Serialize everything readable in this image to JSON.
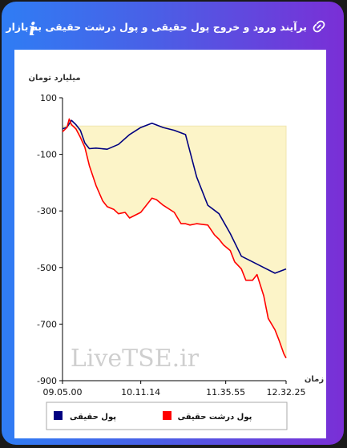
{
  "header": {
    "title": "برآیند ورود و خروج پول حقیقی و پول درشت حقیقی به بازار",
    "info_label": "i",
    "link_icon": "link-icon"
  },
  "watermark": "LiveTSE.ir",
  "colors": {
    "real_money": "#000080",
    "big_real_money": "#ff0000",
    "fill": "#fcf4c8",
    "fill_edge": "#f0e6b0"
  },
  "chart_data": {
    "type": "area",
    "ylabel": "میلیارد تومان",
    "xlabel": "زمان",
    "ylim": [
      -900,
      100
    ],
    "y_ticks": [
      100,
      -100,
      -300,
      -500,
      -700,
      -900
    ],
    "x_ticks": [
      "09.05.00",
      "10.11.14",
      "11.35.55",
      "12.32.25"
    ],
    "grid": false,
    "legend_position": "bottom",
    "legend": [
      "پول حقیقی",
      "پول درشت حقیقی"
    ],
    "series": [
      {
        "name": "پول حقیقی",
        "x": [
          0,
          2,
          4,
          6,
          8,
          10,
          12,
          15,
          20,
          25,
          30,
          35,
          40,
          45,
          50,
          55,
          60,
          65,
          70,
          75,
          80,
          85,
          90,
          95,
          100
        ],
        "values": [
          -10,
          -4,
          20,
          5,
          -15,
          -60,
          -80,
          -78,
          -82,
          -65,
          -30,
          -5,
          10,
          -5,
          -15,
          -30,
          -180,
          -280,
          -310,
          -380,
          -460,
          -480,
          -500,
          -520,
          -505
        ]
      },
      {
        "name": "پول درشت حقیقی",
        "x": [
          0,
          2,
          3,
          4,
          6,
          8,
          10,
          12,
          15,
          18,
          20,
          23,
          25,
          28,
          30,
          35,
          40,
          42,
          45,
          50,
          53,
          55,
          57,
          60,
          65,
          68,
          70,
          72,
          75,
          77,
          80,
          82,
          85,
          87,
          90,
          92,
          95,
          97,
          99,
          100
        ],
        "values": [
          -20,
          -5,
          25,
          5,
          -10,
          -40,
          -75,
          -140,
          -210,
          -265,
          -285,
          -295,
          -310,
          -305,
          -325,
          -305,
          -255,
          -260,
          -280,
          -305,
          -345,
          -345,
          -350,
          -345,
          -350,
          -385,
          -400,
          -420,
          -440,
          -480,
          -505,
          -545,
          -545,
          -525,
          -600,
          -680,
          -720,
          -760,
          -805,
          -820
        ]
      }
    ]
  },
  "legend": {
    "real_money": "پول حقیقی",
    "big_real_money": "پول درشت حقیقی"
  }
}
